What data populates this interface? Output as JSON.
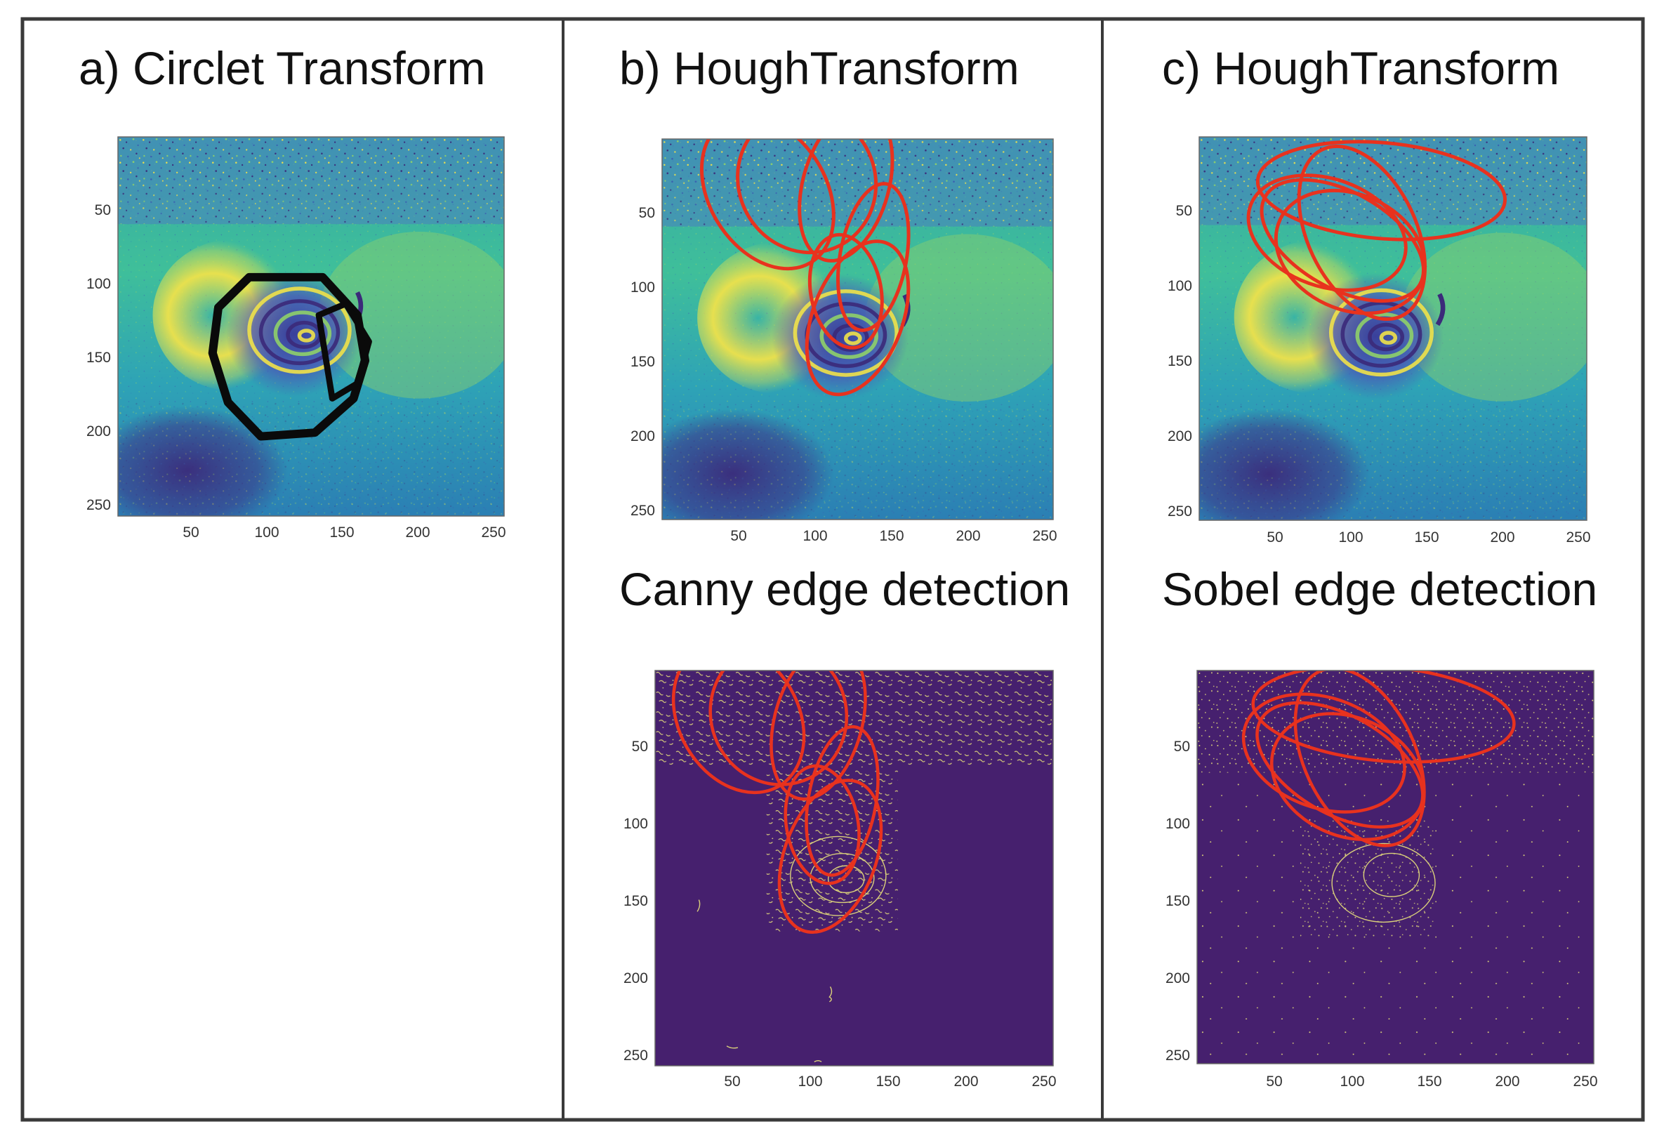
{
  "panels": [
    {
      "id": "a",
      "title": "a) Circlet Transform",
      "plots": [
        {
          "kind": "interferogram",
          "overlay": "circlet",
          "overlay_color": "#0a0a0a",
          "xticks": [
            "50",
            "100",
            "150",
            "200",
            "250"
          ],
          "yticks": [
            "50",
            "100",
            "150",
            "200",
            "250"
          ]
        }
      ]
    },
    {
      "id": "b",
      "title": "b) HoughTransform",
      "subtitle": "Canny edge detection",
      "plots": [
        {
          "kind": "interferogram",
          "overlay": "hough-ellipses",
          "overlay_color": "#e8321e",
          "xticks": [
            "50",
            "100",
            "150",
            "200",
            "250"
          ],
          "yticks": [
            "50",
            "100",
            "150",
            "200",
            "250"
          ]
        },
        {
          "kind": "edge-map",
          "overlay": "hough-ellipses",
          "overlay_color": "#e8321e",
          "xticks": [
            "50",
            "100",
            "150",
            "200",
            "250"
          ],
          "yticks": [
            "50",
            "100",
            "150",
            "200",
            "250"
          ]
        }
      ]
    },
    {
      "id": "c",
      "title": "c) HoughTransform",
      "subtitle": "Sobel edge detection",
      "plots": [
        {
          "kind": "interferogram",
          "overlay": "hough-ellipses",
          "overlay_color": "#e8321e",
          "xticks": [
            "50",
            "100",
            "150",
            "200",
            "250"
          ],
          "yticks": [
            "50",
            "100",
            "150",
            "200",
            "250"
          ]
        },
        {
          "kind": "edge-map",
          "overlay": "hough-ellipses",
          "overlay_color": "#e8321e",
          "xticks": [
            "50",
            "100",
            "150",
            "200",
            "250"
          ],
          "yticks": [
            "50",
            "100",
            "150",
            "200",
            "250"
          ]
        }
      ]
    }
  ],
  "colors": {
    "border": "#3a3a3a",
    "edge_background": "#46206e",
    "edge_lines": "#d9cf7a",
    "colormap": [
      "#3b2a7a",
      "#3a5fb0",
      "#2a9ab8",
      "#3fbf9a",
      "#8fd16a",
      "#f0e24a"
    ]
  }
}
